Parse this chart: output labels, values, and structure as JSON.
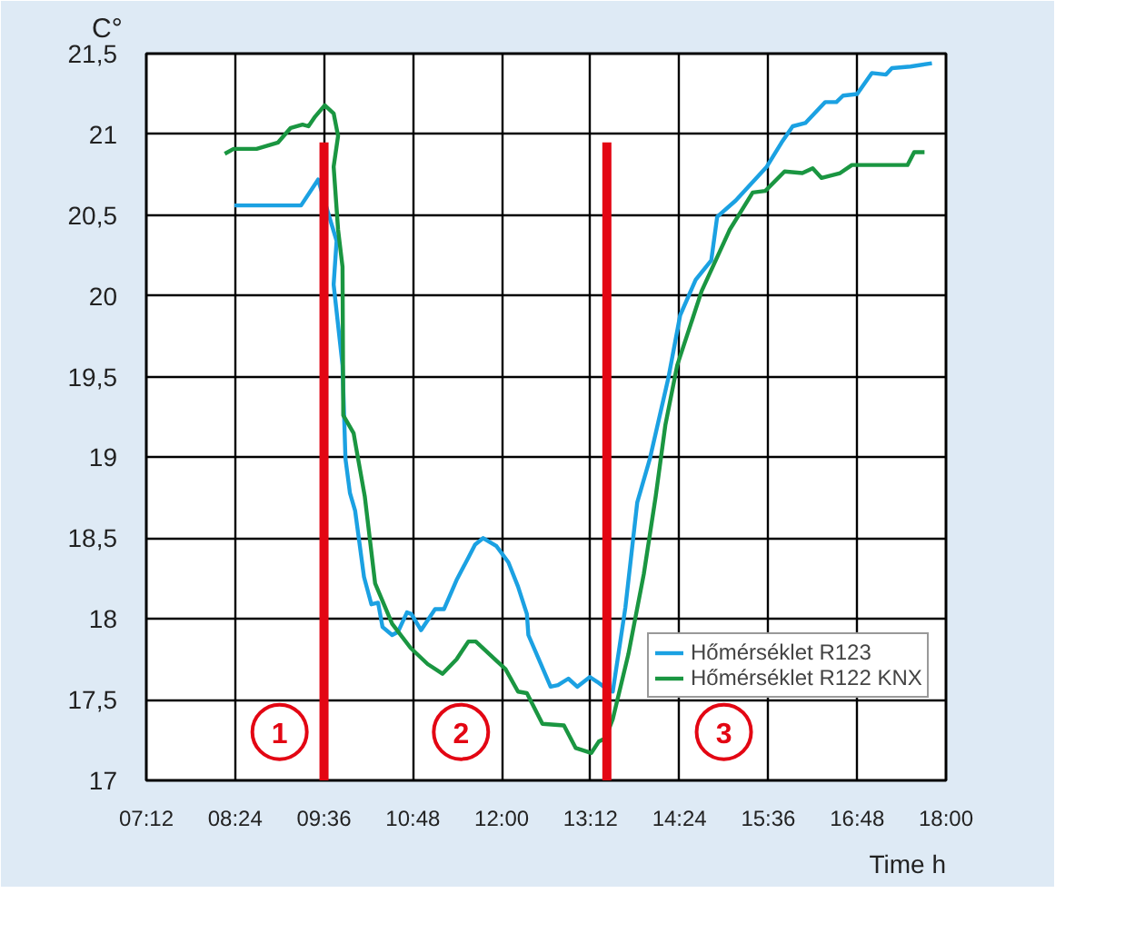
{
  "chart_data": {
    "type": "line",
    "xlabel": "Time h",
    "ylabel": "C°",
    "xlim": [
      7.2,
      18.0
    ],
    "ylim": [
      17,
      21.5
    ],
    "xticks": [
      {
        "value": 7.2,
        "label": "07:12"
      },
      {
        "value": 8.4,
        "label": "08:24"
      },
      {
        "value": 9.6,
        "label": "09:36"
      },
      {
        "value": 10.8,
        "label": "10:48"
      },
      {
        "value": 12.0,
        "label": "12:00"
      },
      {
        "value": 13.2,
        "label": "13:12"
      },
      {
        "value": 14.4,
        "label": "14:24"
      },
      {
        "value": 15.6,
        "label": "15:36"
      },
      {
        "value": 16.8,
        "label": "16:48"
      },
      {
        "value": 18.0,
        "label": "18:00"
      }
    ],
    "yticks": [
      17,
      {
        "value": 17.5,
        "label": "17,5"
      },
      18,
      {
        "value": 18.5,
        "label": "18,5"
      },
      19,
      {
        "value": 19.5,
        "label": "19,5"
      },
      20,
      {
        "value": 20.5,
        "label": "20,5"
      },
      21,
      {
        "value": 21.5,
        "label": "21,5"
      }
    ],
    "grid": true,
    "legend": "right",
    "series": [
      {
        "name": "Hőmérséklet R123",
        "color": "#1ba1e2",
        "x": [
          8.39,
          9.29,
          9.52,
          9.77,
          9.73,
          9.85,
          9.89,
          9.95,
          10.02,
          10.14,
          10.24,
          10.33,
          10.39,
          10.52,
          10.6,
          10.72,
          10.78,
          10.91,
          11.1,
          11.22,
          11.39,
          11.55,
          11.64,
          11.75,
          11.93,
          12.09,
          12.22,
          12.34,
          12.36,
          12.51,
          12.66,
          12.76,
          12.9,
          13.02,
          13.19,
          13.29,
          13.38,
          13.5,
          13.67,
          13.83,
          14.0,
          14.25,
          14.41,
          14.62,
          14.83,
          14.91,
          15.16,
          15.58,
          15.78,
          15.93,
          16.1,
          16.37,
          16.52,
          16.61,
          16.8,
          17.0,
          17.19,
          17.27,
          17.52,
          17.81
        ],
        "values": [
          20.56,
          20.56,
          20.72,
          20.34,
          20.07,
          19.57,
          18.99,
          18.78,
          18.67,
          18.26,
          18.09,
          18.1,
          17.95,
          17.9,
          17.92,
          18.04,
          18.03,
          17.93,
          18.06,
          18.06,
          18.24,
          18.38,
          18.46,
          18.5,
          18.45,
          18.35,
          18.2,
          18.03,
          17.9,
          17.74,
          17.58,
          17.59,
          17.63,
          17.58,
          17.64,
          17.61,
          17.58,
          17.55,
          18.07,
          18.72,
          18.99,
          19.49,
          19.88,
          20.1,
          20.22,
          20.49,
          20.59,
          20.8,
          20.95,
          21.05,
          21.07,
          21.2,
          21.2,
          21.24,
          21.25,
          21.38,
          21.37,
          21.41,
          21.42,
          21.44
        ]
      },
      {
        "name": "Hőmérséklet R122 KNX",
        "color": "#1a9641",
        "x": [
          8.26,
          8.38,
          8.69,
          8.98,
          9.15,
          9.31,
          9.39,
          9.48,
          9.61,
          9.73,
          9.79,
          9.73,
          9.79,
          9.85,
          9.86,
          10.0,
          10.03,
          10.15,
          10.29,
          10.52,
          10.77,
          11.0,
          11.2,
          11.39,
          11.55,
          11.65,
          11.93,
          12.05,
          12.22,
          12.34,
          12.55,
          12.84,
          13.0,
          13.21,
          13.31,
          13.4,
          13.5,
          13.71,
          13.92,
          14.08,
          14.21,
          14.37,
          14.7,
          15.08,
          15.39,
          15.56,
          15.82,
          16.06,
          16.2,
          16.32,
          16.57,
          16.73,
          17.48,
          17.57,
          17.71
        ],
        "values": [
          20.88,
          20.91,
          20.91,
          20.95,
          21.04,
          21.06,
          21.05,
          21.11,
          21.18,
          21.13,
          20.99,
          20.8,
          20.41,
          20.18,
          19.26,
          19.15,
          19.07,
          18.76,
          18.22,
          17.97,
          17.82,
          17.72,
          17.66,
          17.75,
          17.86,
          17.86,
          17.74,
          17.69,
          17.55,
          17.54,
          17.35,
          17.34,
          17.2,
          17.17,
          17.24,
          17.26,
          17.38,
          17.78,
          18.28,
          18.76,
          19.2,
          19.57,
          20.03,
          20.41,
          20.64,
          20.65,
          20.77,
          20.76,
          20.79,
          20.73,
          20.76,
          20.81,
          20.81,
          20.89,
          20.89
        ]
      },
      {
        "color": "#e30613",
        "x": [
          9.6,
          9.6
        ],
        "values": [
          17,
          20.95
        ]
      },
      {
        "color": "#e30613",
        "x": [
          13.42,
          13.42
        ],
        "values": [
          17,
          20.95
        ]
      }
    ],
    "annotations": [
      {
        "text": "1",
        "x": 9.0,
        "y": 17.3
      },
      {
        "text": "2",
        "x": 11.45,
        "y": 17.3
      },
      {
        "text": "3",
        "x": 15.0,
        "y": 17.3
      }
    ]
  }
}
